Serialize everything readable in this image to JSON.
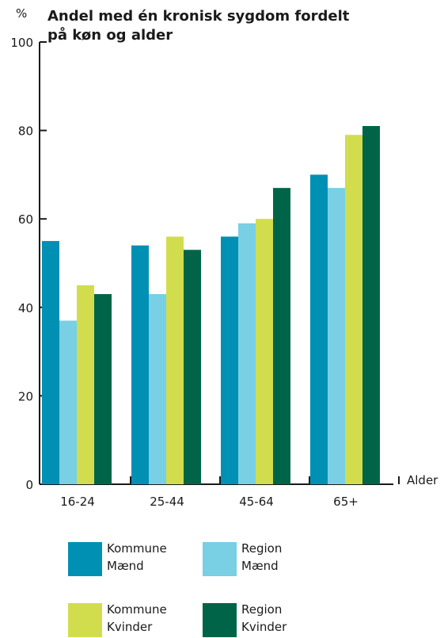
{
  "chart_data": {
    "type": "bar",
    "title_lines": [
      "Andel med én kronisk sygdom fordelt",
      "på køn og alder"
    ],
    "ylabel": "%",
    "xlabel": "Alder",
    "ylim": [
      0,
      100
    ],
    "yticks": [
      0,
      20,
      40,
      60,
      80,
      100
    ],
    "grid": false,
    "legend_position": "bottom",
    "categories": [
      "16-24",
      "25-44",
      "45-64",
      "65+"
    ],
    "series": [
      {
        "name_lines": [
          "Kommune",
          "Mænd"
        ],
        "color": "#0090b4",
        "values": [
          55,
          54,
          56,
          70
        ]
      },
      {
        "name_lines": [
          "Region",
          "Mænd"
        ],
        "color": "#79cfe4",
        "values": [
          37,
          43,
          59,
          67
        ]
      },
      {
        "name_lines": [
          "Kommune",
          "Kvinder"
        ],
        "color": "#d2dd4d",
        "values": [
          45,
          56,
          60,
          79
        ]
      },
      {
        "name_lines": [
          "Region",
          "Kvinder"
        ],
        "color": "#006548",
        "values": [
          43,
          53,
          67,
          81
        ]
      }
    ]
  }
}
